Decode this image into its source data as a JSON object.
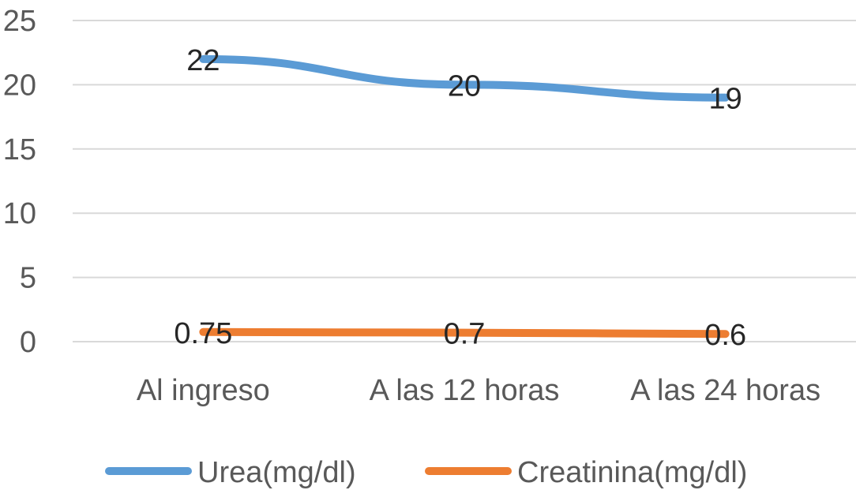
{
  "chart_data": {
    "type": "line",
    "categories": [
      "Al ingreso",
      "A las 12 horas",
      "A las 24 horas"
    ],
    "series": [
      {
        "name": "Urea(mg/dl)",
        "values": [
          22,
          20,
          19
        ],
        "color": "#5B9BD5",
        "labels": [
          "22",
          "20",
          "19"
        ]
      },
      {
        "name": "Creatinina(mg/dl)",
        "values": [
          0.75,
          0.7,
          0.6
        ],
        "color": "#ED7D31",
        "labels": [
          "0.75",
          "0.7",
          "0.6"
        ]
      }
    ],
    "ylim": [
      0,
      25
    ],
    "yticks": [
      "0",
      "5",
      "10",
      "15",
      "20",
      "25"
    ],
    "grid": true,
    "legend": "bottom",
    "title": "",
    "xlabel": "",
    "ylabel": ""
  }
}
